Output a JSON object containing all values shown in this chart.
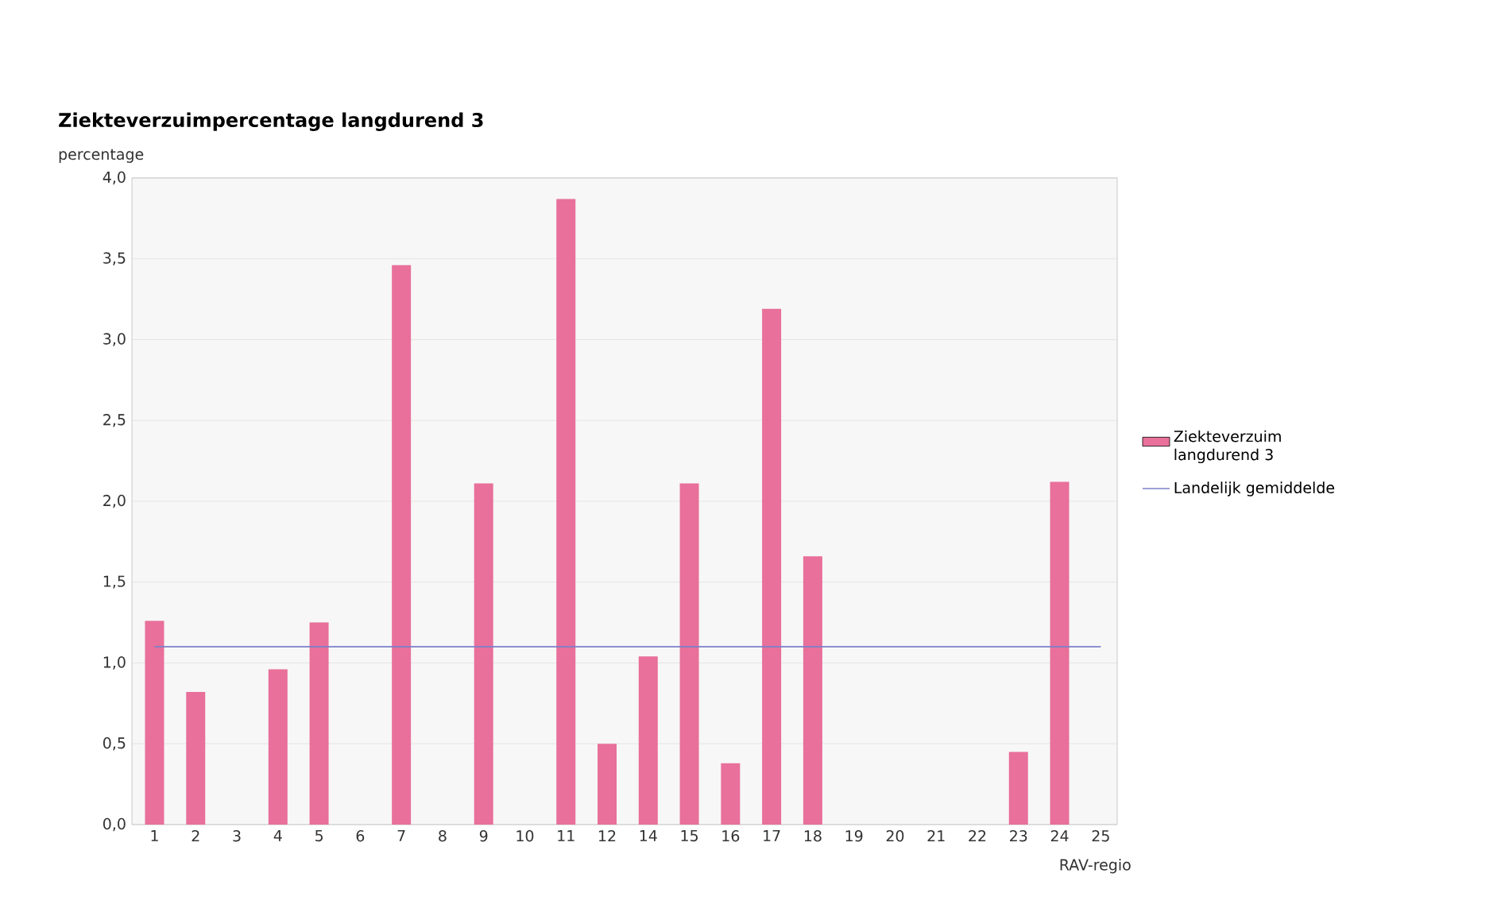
{
  "chart_data": {
    "type": "bar",
    "title": "Ziekteverzuimpercentage langdurend 3",
    "xlabel": "RAV-regio",
    "ylabel": "percentage",
    "categories": [
      "1",
      "2",
      "3",
      "4",
      "5",
      "6",
      "7",
      "8",
      "9",
      "10",
      "11",
      "12",
      "14",
      "15",
      "16",
      "17",
      "18",
      "19",
      "20",
      "21",
      "22",
      "23",
      "24",
      "25"
    ],
    "series": [
      {
        "name": "Ziekteverzuim langdurend 3",
        "color": "#e8709a",
        "values": [
          1.26,
          0.82,
          null,
          0.96,
          1.25,
          null,
          3.46,
          null,
          2.11,
          null,
          3.87,
          0.5,
          1.04,
          2.11,
          0.38,
          3.19,
          1.66,
          null,
          null,
          null,
          null,
          0.45,
          2.12,
          null
        ]
      }
    ],
    "ref_lines": [
      {
        "axis": "y",
        "value": 1.1,
        "label": "Landelijk gemiddelde",
        "color": "#7b80c8",
        "line_style": "solid"
      }
    ],
    "ylim": [
      0,
      4
    ],
    "yticks": [
      {
        "value": 0,
        "label": "0,0"
      },
      {
        "value": 0.5,
        "label": "0,5"
      },
      {
        "value": 1,
        "label": "1,0"
      },
      {
        "value": 1.5,
        "label": "1,5"
      },
      {
        "value": 2,
        "label": "2,0"
      },
      {
        "value": 2.5,
        "label": "2,5"
      },
      {
        "value": 3,
        "label": "3,0"
      },
      {
        "value": 3.5,
        "label": "3,5"
      },
      {
        "value": 4,
        "label": "4,0"
      }
    ],
    "grid": "y",
    "legend": "right"
  }
}
